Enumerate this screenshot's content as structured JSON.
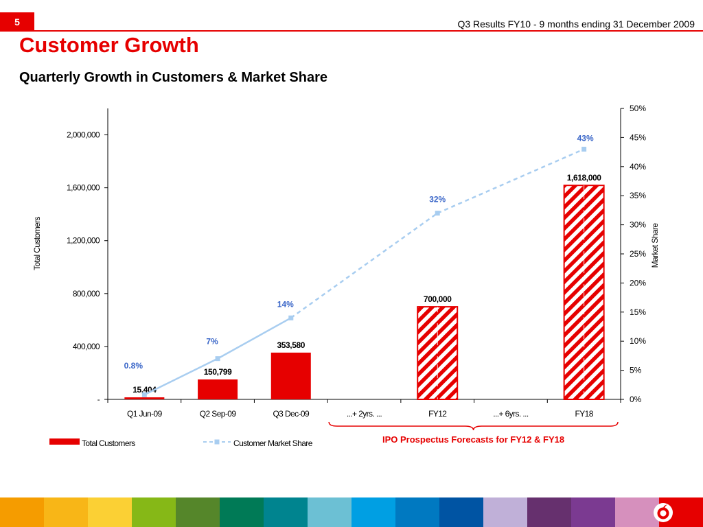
{
  "header": {
    "slide_number": "5",
    "top_text": "Q3 Results FY10 - 9 months ending 31 December 2009",
    "title": "Customer Growth",
    "subtitle": "Quarterly Growth in Customers & Market Share"
  },
  "colors": {
    "brand_red": "#e60000",
    "share_line": "#a8cdf0",
    "share_label": "#3a66c8",
    "footer": [
      "#f59c00",
      "#f8b617",
      "#fbd034",
      "#86b817",
      "#55862a",
      "#007a56",
      "#00848f",
      "#6cc0d4",
      "#009fe3",
      "#0079c1",
      "#0054a3",
      "#c0b0d8",
      "#66306e",
      "#7b3a91",
      "#d690bd",
      "#e60000"
    ]
  },
  "chart_data": {
    "type": "bar",
    "categories": [
      "Q1 Jun-09",
      "Q2 Sep-09",
      "Q3 Dec-09",
      "...+ 2yrs. ...",
      "FY12",
      "...+ 6yrs. ...",
      "FY18"
    ],
    "series": [
      {
        "name": "Total Customers",
        "axis": "left",
        "values": [
          15404,
          150799,
          353580,
          null,
          700000,
          null,
          1618000
        ],
        "labels": [
          "15,404",
          "150,799",
          "353,580",
          "",
          "700,000",
          "",
          "1,618,000"
        ],
        "forecast": [
          false,
          false,
          false,
          false,
          true,
          false,
          true
        ]
      },
      {
        "name": "Customer Market Share",
        "axis": "right",
        "type": "line",
        "values": [
          0.8,
          7,
          14,
          null,
          32,
          null,
          43
        ],
        "labels": [
          "0.8%",
          "7%",
          "14%",
          "",
          "32%",
          "",
          "43%"
        ]
      }
    ],
    "left_axis": {
      "label": "Total Customers",
      "range": [
        0,
        2200000
      ],
      "ticks": [
        0,
        400000,
        800000,
        1200000,
        1600000,
        2000000
      ],
      "tick_labels": [
        "-",
        "400,000",
        "800,000",
        "1,200,000",
        "1,600,000",
        "2,000,000"
      ]
    },
    "right_axis": {
      "label": "Market Share",
      "range": [
        0,
        50
      ],
      "ticks": [
        0,
        5,
        10,
        15,
        20,
        25,
        30,
        35,
        40,
        45,
        50
      ],
      "tick_labels": [
        "0%",
        "5%",
        "10%",
        "15%",
        "20%",
        "25%",
        "30%",
        "35%",
        "40%",
        "45%",
        "50%"
      ]
    },
    "legend": {
      "bar_label": "Total Customers",
      "line_label": "Customer Market Share"
    },
    "annotation": "IPO Prospectus Forecasts for FY12 & FY18"
  }
}
